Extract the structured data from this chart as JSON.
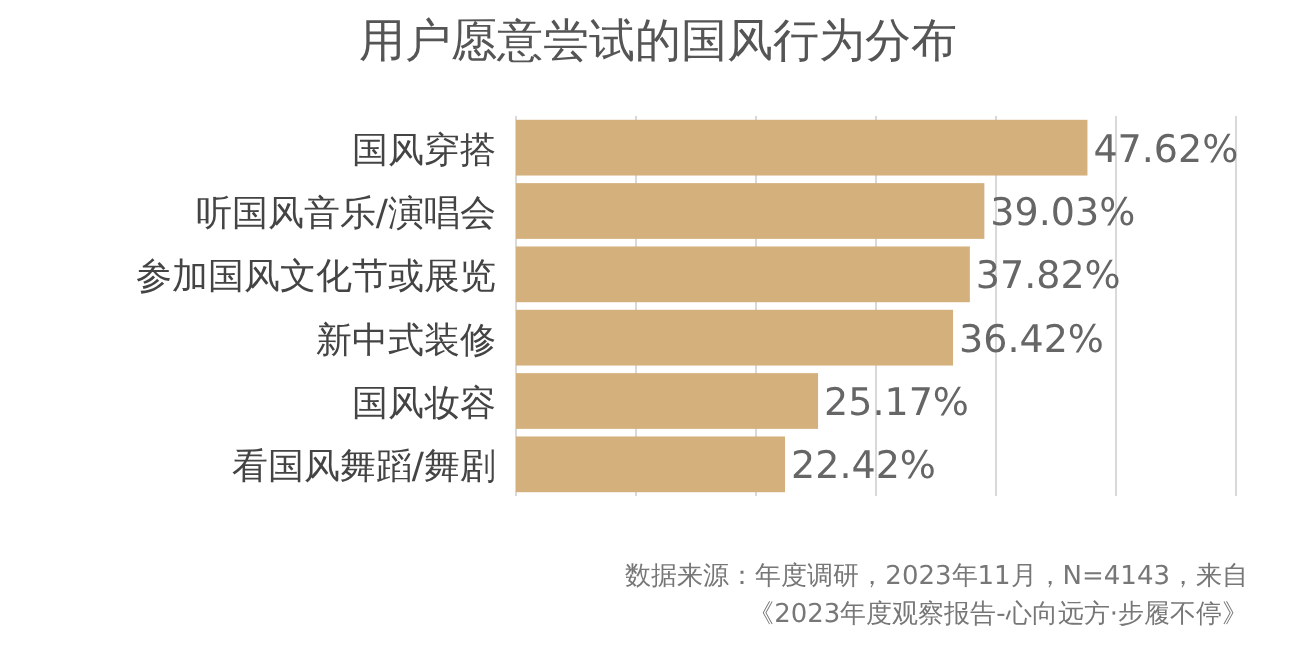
{
  "chart_data": {
    "type": "bar",
    "orientation": "horizontal",
    "title": "用户愿意尝试的国风行为分布",
    "categories": [
      "国风穿搭",
      "听国风音乐/演唱会",
      "参加国风文化节或展览",
      "新中式装修",
      "国风妆容",
      "看国风舞蹈/舞剧"
    ],
    "values": [
      47.62,
      39.03,
      37.82,
      36.42,
      25.17,
      22.42
    ],
    "value_labels": [
      "47.62%",
      "39.03%",
      "37.82%",
      "36.42%",
      "25.17%",
      "22.42%"
    ],
    "color": "#d4b07c",
    "xlim": [
      0,
      60
    ],
    "xticks": [
      {
        "value": 0,
        "label": null
      },
      {
        "value": 10,
        "label": null
      },
      {
        "value": 20,
        "label": null
      },
      {
        "value": 30,
        "label": null
      },
      {
        "value": 40,
        "label": null
      },
      {
        "value": 50,
        "label": null
      },
      {
        "value": 60,
        "label": null
      }
    ],
    "grid": "x",
    "tick_labels": "y",
    "annotations": [
      "数据来源：年度调研，2023年11月，N=4143，来自",
      "《2023年度观察报告-心向远方·步履不停》"
    ]
  }
}
